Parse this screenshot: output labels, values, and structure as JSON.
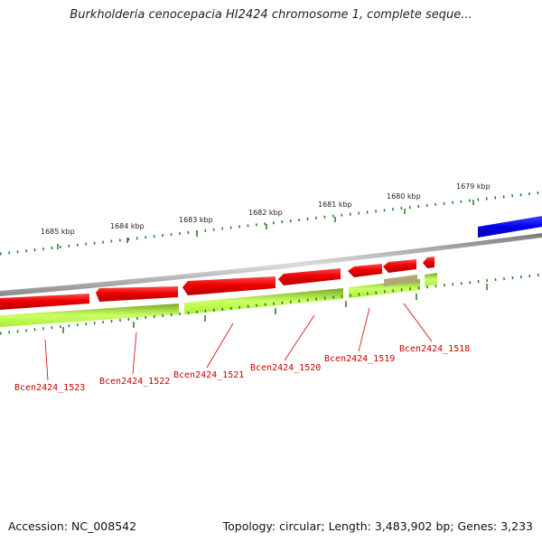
{
  "title": "Burkholderia cenocepacia HI2424 chromosome 1, complete seque...",
  "footer": {
    "accession": "Accession: NC_008542",
    "summary": "Topology: circular; Length: 3,483,902 bp; Genes: 3,233"
  },
  "scale_labels": [
    "1685 kbp",
    "1684 kbp",
    "1683 kbp",
    "1682 kbp",
    "1681 kbp",
    "1680 kbp",
    "1679 kbp"
  ],
  "gene_labels": [
    "Bcen2424_1523",
    "Bcen2424_1522",
    "Bcen2424_1521",
    "Bcen2424_1520",
    "Bcen2424_1519",
    "Bcen2424_1518"
  ],
  "colors": {
    "forward_gene": "#0000ee",
    "reverse_gene": "#ee0000",
    "reverse_cds": "#aaee33",
    "backbone": "#888888",
    "ticks": "#227722",
    "label": "#cc0000",
    "other_feature": "#b0a878"
  }
}
